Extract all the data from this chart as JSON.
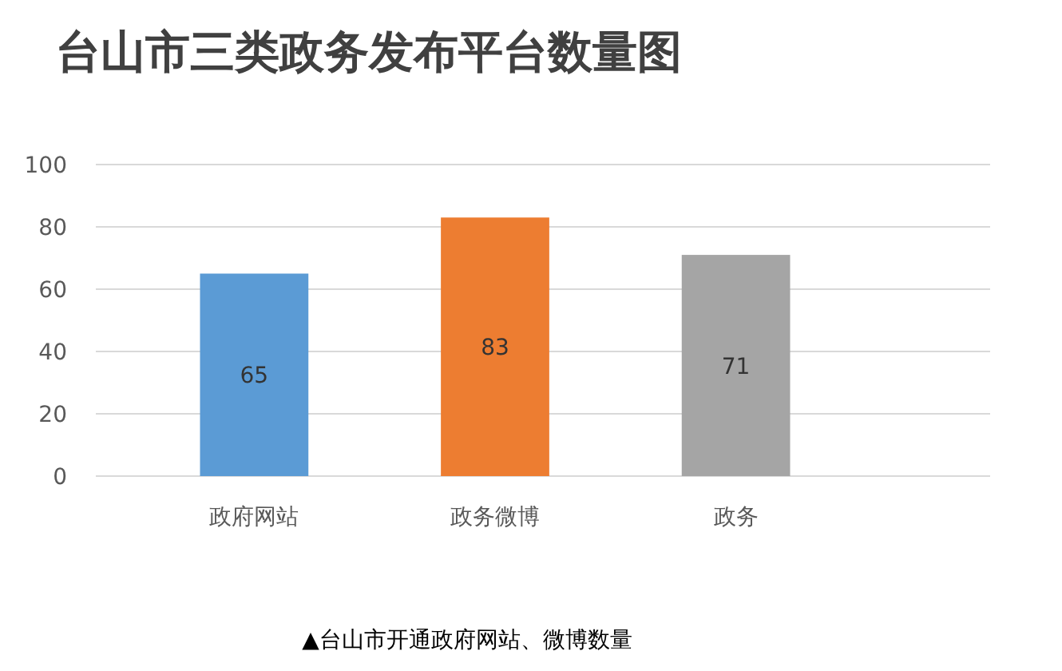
{
  "chart_data": {
    "type": "bar",
    "title": "台山市三类政务发布平台数量图",
    "categories": [
      "政府网站",
      "政务微博",
      "政务"
    ],
    "values": [
      65,
      83,
      71
    ],
    "colors": [
      "#5b9bd5",
      "#ed7d31",
      "#a5a5a5"
    ],
    "ylim": [
      0,
      100
    ],
    "yticks": [
      0,
      20,
      40,
      60,
      80,
      100
    ],
    "grid": true,
    "data_labels": true,
    "annotations": [
      "▲台山市开通政府网站、微博数量"
    ]
  }
}
